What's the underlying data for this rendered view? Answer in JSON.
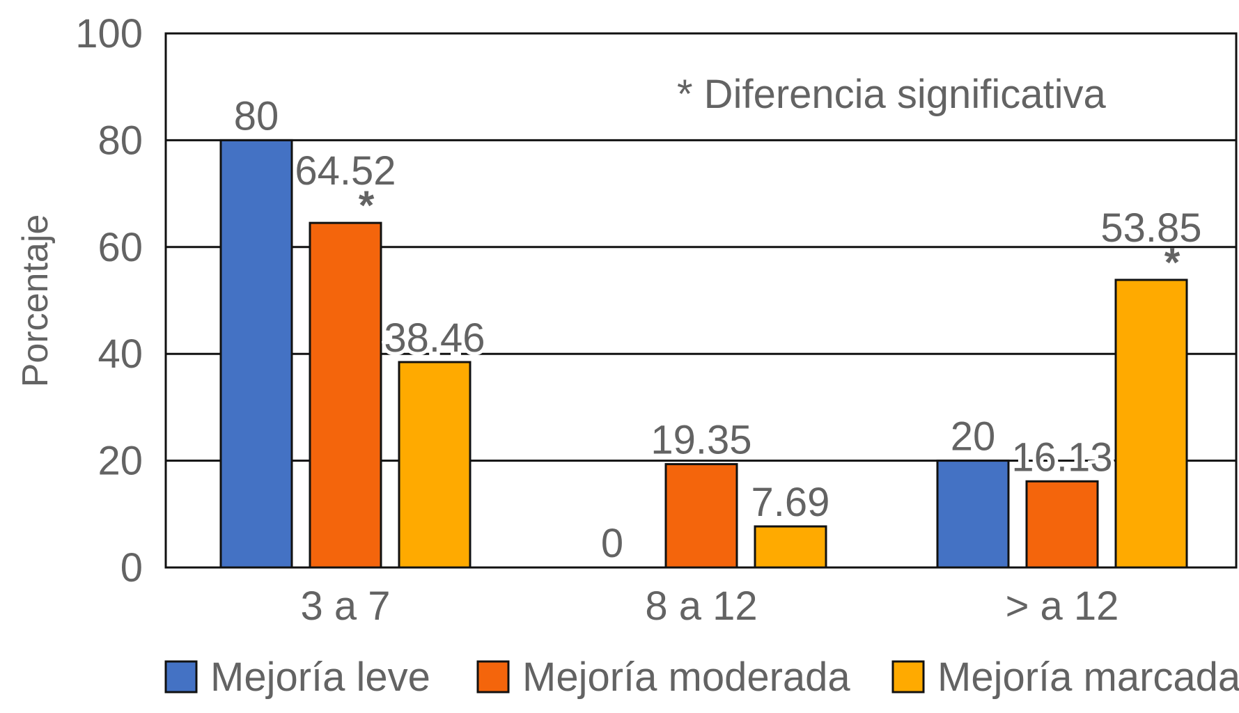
{
  "chart_data": {
    "type": "bar",
    "title": "",
    "xlabel": "",
    "ylabel": "Porcentaje",
    "ylim": [
      0,
      100
    ],
    "yticks": [
      "0",
      "20",
      "40",
      "60",
      "80",
      "100"
    ],
    "yticks_values": [
      0,
      20,
      40,
      60,
      80,
      100
    ],
    "grid": true,
    "categories": [
      "3 a 7",
      "8 a 12",
      "> a 12"
    ],
    "series": [
      {
        "name": "Mejoría leve",
        "color": "#4472C4",
        "values": [
          80,
          0,
          20
        ],
        "labels": [
          "80",
          "0",
          "20"
        ],
        "significant": [
          false,
          false,
          false
        ]
      },
      {
        "name": "Mejoría moderada",
        "color": "#F4650C",
        "values": [
          64.52,
          19.35,
          16.13
        ],
        "labels": [
          "64.52",
          "19.35",
          "16.13"
        ],
        "significant": [
          true,
          false,
          false
        ]
      },
      {
        "name": "Mejoría marcada",
        "color": "#FFAA00",
        "values": [
          38.46,
          7.69,
          53.85
        ],
        "labels": [
          "38.46",
          "7.69",
          "53.85"
        ],
        "significant": [
          false,
          false,
          true
        ]
      }
    ],
    "significance_marker": "*",
    "annotation": "* Diferencia significativa",
    "legend_position": "bottom"
  }
}
